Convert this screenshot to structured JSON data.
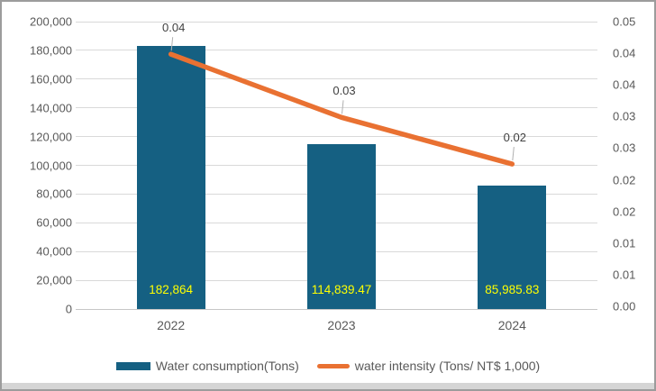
{
  "chart_data": {
    "type": "combo-bar-line",
    "title": "",
    "categories": [
      "2022",
      "2023",
      "2024"
    ],
    "series": [
      {
        "name": "Water consumption(Tons)",
        "type": "bar",
        "y_axis": "primary",
        "color": "#156082",
        "values": [
          182864,
          114839.47,
          85985.83
        ],
        "data_labels": [
          "182,864",
          "114,839.47",
          "85,985.83"
        ],
        "data_label_color": "#ffff00"
      },
      {
        "name": "water intensity (Tons/ NT$ 1,000)",
        "type": "line",
        "y_axis": "secondary",
        "color": "#e97132",
        "values": [
          0.0399,
          0.03,
          0.0227
        ],
        "data_labels": [
          "0.04",
          "0.03",
          "0.02"
        ],
        "data_label_color": "#404040"
      }
    ],
    "primary_axis": {
      "min": 0,
      "max": 200000,
      "tick_labels_bottom_to_top": [
        "0",
        "20,000",
        "40,000",
        "60,000",
        "80,000",
        "100,000",
        "120,000",
        "140,000",
        "160,000",
        "180,000",
        "200,000"
      ]
    },
    "secondary_axis": {
      "min": 0,
      "max": 0.045,
      "tick_labels_bottom_to_top": [
        "0.00",
        "0.01",
        "0.01",
        "0.02",
        "0.02",
        "0.03",
        "0.03",
        "0.04",
        "0.04",
        "0.05"
      ]
    },
    "grid": true,
    "legend_position": "bottom"
  },
  "legend": {
    "items": [
      {
        "label": "Water consumption(Tons)",
        "swatch": "bar"
      },
      {
        "label": "water intensity (Tons/ NT$ 1,000)",
        "swatch": "line"
      }
    ]
  },
  "colors": {
    "bar": "#156082",
    "line": "#e97132",
    "bar_label": "#ffff00",
    "axis_text": "#595959",
    "data_label": "#404040",
    "gridline": "#d9d9d9",
    "leader_line": "#b0b0b0",
    "frame_border": "#9c9c9c",
    "bottom_strip": "#d5d5d5"
  }
}
